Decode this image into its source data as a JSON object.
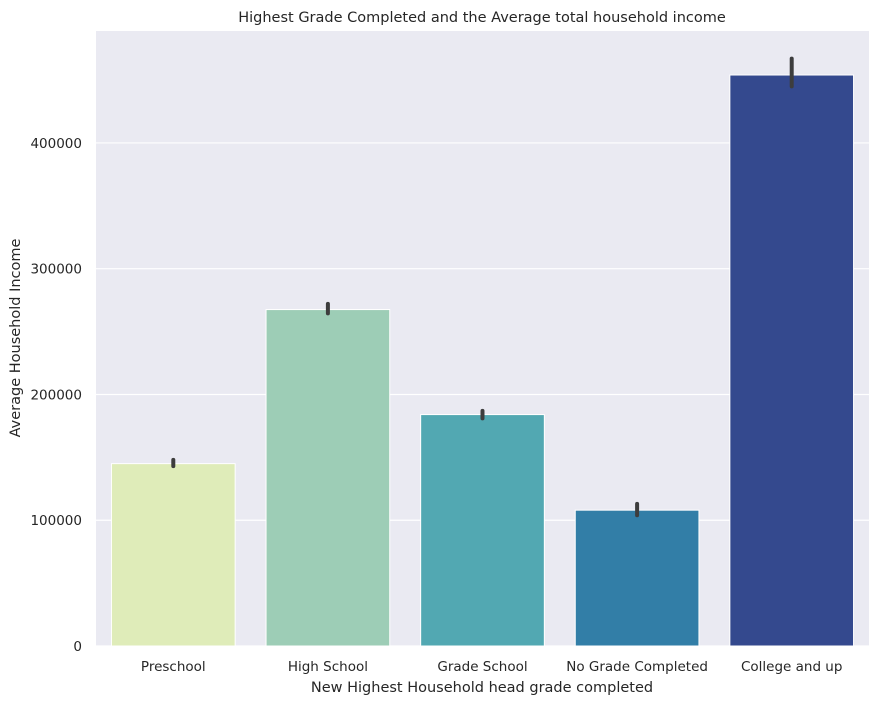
{
  "chart_data": {
    "type": "bar",
    "title": "Highest Grade Completed and the Average total household income",
    "xlabel": "New Highest Household head grade completed",
    "ylabel": "Average Household Income",
    "categories": [
      "Preschool",
      "High School",
      "Grade School",
      "No Grade Completed",
      "College and up"
    ],
    "values": [
      145000,
      267500,
      184000,
      108000,
      454000
    ],
    "error_low": [
      143000,
      264500,
      181000,
      104000,
      445000
    ],
    "error_high": [
      148000,
      272000,
      187000,
      113000,
      467000
    ],
    "ylim": [
      0,
      489000
    ],
    "yticks": [
      0,
      100000,
      200000,
      300000,
      400000
    ],
    "ytick_labels": [
      "0",
      "100000",
      "200000",
      "300000",
      "400000"
    ],
    "grid": true,
    "colors": [
      "#dfecb9",
      "#9dcdb6",
      "#52a8b2",
      "#327ea7",
      "#34498e"
    ],
    "background": "#eaeaf2",
    "error_color": "#3d3d3d"
  }
}
